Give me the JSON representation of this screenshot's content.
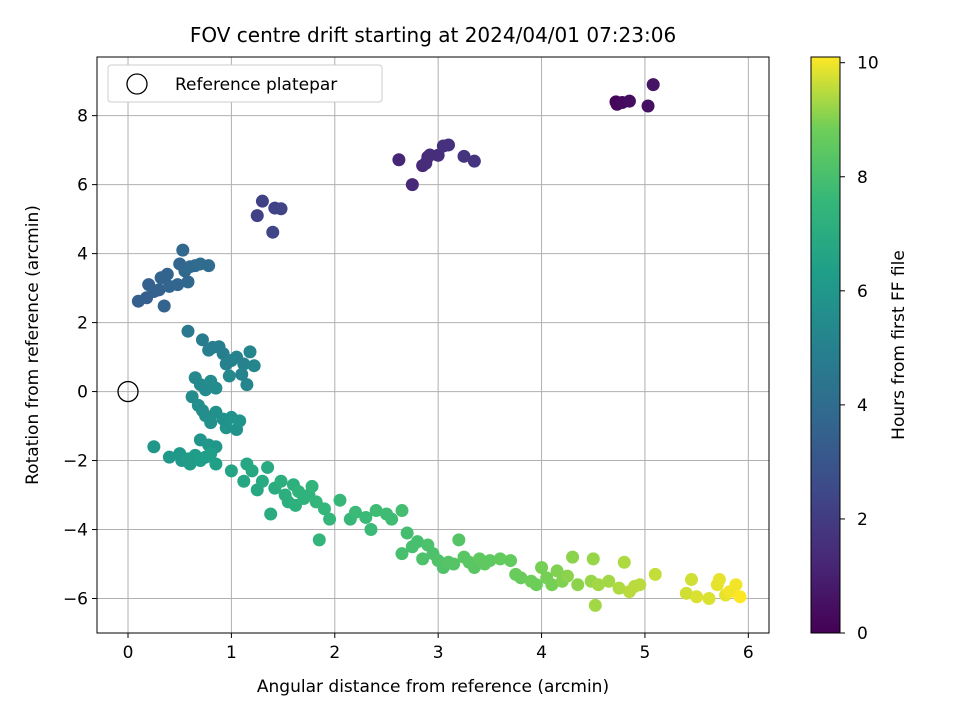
{
  "chart_data": {
    "type": "scatter",
    "title": "FOV centre drift starting at 2024/04/01 07:23:06",
    "xlabel": "Angular distance from reference (arcmin)",
    "ylabel": "Rotation from reference (arcmin)",
    "xlim": [
      -0.3,
      6.2
    ],
    "ylim": [
      -7.0,
      9.7
    ],
    "xticks": [
      0,
      1,
      2,
      3,
      4,
      5,
      6
    ],
    "yticks": [
      -6,
      -4,
      -2,
      0,
      2,
      4,
      6,
      8
    ],
    "grid": true,
    "legend": {
      "position": "top-left",
      "entries": [
        "Reference platepar"
      ]
    },
    "reference_point": {
      "x": 0,
      "y": 0
    },
    "colorbar": {
      "label": "Hours from first FF file",
      "range": [
        0,
        10.1
      ],
      "ticks": [
        0,
        2,
        4,
        6,
        8,
        10
      ],
      "colormap": "viridis"
    },
    "points": [
      {
        "x": 4.72,
        "y": 8.4,
        "c": 0.1
      },
      {
        "x": 4.73,
        "y": 8.33,
        "c": 0.2
      },
      {
        "x": 4.78,
        "y": 8.38,
        "c": 0.3
      },
      {
        "x": 4.85,
        "y": 8.42,
        "c": 0.4
      },
      {
        "x": 5.03,
        "y": 8.28,
        "c": 0.5
      },
      {
        "x": 5.08,
        "y": 8.9,
        "c": 0.6
      },
      {
        "x": 2.62,
        "y": 6.72,
        "c": 1.2
      },
      {
        "x": 2.75,
        "y": 6.0,
        "c": 1.3
      },
      {
        "x": 2.85,
        "y": 6.55,
        "c": 1.3
      },
      {
        "x": 2.88,
        "y": 6.62,
        "c": 1.4
      },
      {
        "x": 2.9,
        "y": 6.8,
        "c": 1.4
      },
      {
        "x": 2.92,
        "y": 6.86,
        "c": 1.5
      },
      {
        "x": 3.0,
        "y": 6.85,
        "c": 1.5
      },
      {
        "x": 3.05,
        "y": 7.12,
        "c": 1.6
      },
      {
        "x": 3.1,
        "y": 7.15,
        "c": 1.6
      },
      {
        "x": 3.25,
        "y": 6.82,
        "c": 1.7
      },
      {
        "x": 3.35,
        "y": 6.68,
        "c": 1.7
      },
      {
        "x": 1.25,
        "y": 5.1,
        "c": 2.2
      },
      {
        "x": 1.3,
        "y": 5.52,
        "c": 2.2
      },
      {
        "x": 1.42,
        "y": 5.32,
        "c": 2.3
      },
      {
        "x": 1.48,
        "y": 5.3,
        "c": 2.3
      },
      {
        "x": 1.4,
        "y": 4.62,
        "c": 2.4
      },
      {
        "x": 0.1,
        "y": 2.62,
        "c": 3.4
      },
      {
        "x": 0.18,
        "y": 2.72,
        "c": 3.4
      },
      {
        "x": 0.2,
        "y": 3.1,
        "c": 3.5
      },
      {
        "x": 0.25,
        "y": 2.9,
        "c": 3.5
      },
      {
        "x": 0.3,
        "y": 2.95,
        "c": 3.5
      },
      {
        "x": 0.32,
        "y": 3.3,
        "c": 3.6
      },
      {
        "x": 0.35,
        "y": 2.48,
        "c": 3.6
      },
      {
        "x": 0.38,
        "y": 3.4,
        "c": 3.6
      },
      {
        "x": 0.4,
        "y": 3.05,
        "c": 3.7
      },
      {
        "x": 0.48,
        "y": 3.1,
        "c": 3.7
      },
      {
        "x": 0.5,
        "y": 3.7,
        "c": 3.7
      },
      {
        "x": 0.53,
        "y": 4.1,
        "c": 3.8
      },
      {
        "x": 0.55,
        "y": 3.5,
        "c": 3.8
      },
      {
        "x": 0.58,
        "y": 3.18,
        "c": 3.8
      },
      {
        "x": 0.6,
        "y": 3.62,
        "c": 3.9
      },
      {
        "x": 0.65,
        "y": 3.65,
        "c": 3.9
      },
      {
        "x": 0.7,
        "y": 3.7,
        "c": 4.0
      },
      {
        "x": 0.78,
        "y": 3.65,
        "c": 4.0
      },
      {
        "x": 0.58,
        "y": 1.75,
        "c": 4.6
      },
      {
        "x": 0.72,
        "y": 1.5,
        "c": 4.7
      },
      {
        "x": 0.78,
        "y": 1.2,
        "c": 4.8
      },
      {
        "x": 0.82,
        "y": 1.28,
        "c": 4.8
      },
      {
        "x": 0.88,
        "y": 1.3,
        "c": 4.9
      },
      {
        "x": 0.92,
        "y": 1.1,
        "c": 4.9
      },
      {
        "x": 0.95,
        "y": 0.8,
        "c": 5.0
      },
      {
        "x": 1.0,
        "y": 0.9,
        "c": 5.0
      },
      {
        "x": 1.05,
        "y": 1.0,
        "c": 5.1
      },
      {
        "x": 1.1,
        "y": 0.5,
        "c": 5.1
      },
      {
        "x": 1.12,
        "y": 0.8,
        "c": 5.1
      },
      {
        "x": 1.15,
        "y": 0.2,
        "c": 5.2
      },
      {
        "x": 1.18,
        "y": 1.15,
        "c": 5.2
      },
      {
        "x": 1.22,
        "y": 0.75,
        "c": 5.2
      },
      {
        "x": 0.98,
        "y": 0.45,
        "c": 5.3
      },
      {
        "x": 0.65,
        "y": 0.4,
        "c": 5.3
      },
      {
        "x": 0.7,
        "y": 0.2,
        "c": 5.4
      },
      {
        "x": 0.75,
        "y": 0.05,
        "c": 5.4
      },
      {
        "x": 0.8,
        "y": 0.3,
        "c": 5.5
      },
      {
        "x": 0.85,
        "y": 0.1,
        "c": 5.5
      },
      {
        "x": 0.62,
        "y": -0.15,
        "c": 5.5
      },
      {
        "x": 0.68,
        "y": -0.4,
        "c": 5.6
      },
      {
        "x": 0.72,
        "y": -0.55,
        "c": 5.6
      },
      {
        "x": 0.75,
        "y": -0.7,
        "c": 5.6
      },
      {
        "x": 0.8,
        "y": -0.9,
        "c": 5.7
      },
      {
        "x": 0.85,
        "y": -0.6,
        "c": 5.7
      },
      {
        "x": 0.92,
        "y": -0.8,
        "c": 5.7
      },
      {
        "x": 0.95,
        "y": -1.05,
        "c": 5.8
      },
      {
        "x": 1.0,
        "y": -0.75,
        "c": 5.8
      },
      {
        "x": 1.05,
        "y": -1.1,
        "c": 5.8
      },
      {
        "x": 1.08,
        "y": -0.85,
        "c": 5.9
      },
      {
        "x": 0.7,
        "y": -1.4,
        "c": 5.9
      },
      {
        "x": 0.78,
        "y": -1.55,
        "c": 6.0
      },
      {
        "x": 0.85,
        "y": -1.6,
        "c": 6.0
      },
      {
        "x": 0.25,
        "y": -1.6,
        "c": 6.0
      },
      {
        "x": 0.4,
        "y": -1.9,
        "c": 6.1
      },
      {
        "x": 0.5,
        "y": -1.8,
        "c": 6.1
      },
      {
        "x": 0.52,
        "y": -2.0,
        "c": 6.1
      },
      {
        "x": 0.58,
        "y": -1.95,
        "c": 6.2
      },
      {
        "x": 0.6,
        "y": -2.1,
        "c": 6.2
      },
      {
        "x": 0.65,
        "y": -1.85,
        "c": 6.2
      },
      {
        "x": 0.7,
        "y": -2.0,
        "c": 6.3
      },
      {
        "x": 0.75,
        "y": -1.9,
        "c": 6.3
      },
      {
        "x": 0.8,
        "y": -1.8,
        "c": 6.3
      },
      {
        "x": 0.85,
        "y": -2.1,
        "c": 6.4
      },
      {
        "x": 1.0,
        "y": -2.3,
        "c": 6.6
      },
      {
        "x": 1.12,
        "y": -2.6,
        "c": 6.7
      },
      {
        "x": 1.15,
        "y": -2.1,
        "c": 6.7
      },
      {
        "x": 1.2,
        "y": -2.3,
        "c": 6.8
      },
      {
        "x": 1.25,
        "y": -2.85,
        "c": 6.8
      },
      {
        "x": 1.3,
        "y": -2.6,
        "c": 6.9
      },
      {
        "x": 1.35,
        "y": -2.2,
        "c": 6.9
      },
      {
        "x": 1.38,
        "y": -3.55,
        "c": 7.0
      },
      {
        "x": 1.42,
        "y": -2.8,
        "c": 7.0
      },
      {
        "x": 1.48,
        "y": -2.6,
        "c": 7.1
      },
      {
        "x": 1.52,
        "y": -3.0,
        "c": 7.1
      },
      {
        "x": 1.55,
        "y": -3.2,
        "c": 7.1
      },
      {
        "x": 1.6,
        "y": -2.7,
        "c": 7.2
      },
      {
        "x": 1.62,
        "y": -3.3,
        "c": 7.2
      },
      {
        "x": 1.65,
        "y": -2.9,
        "c": 7.3
      },
      {
        "x": 1.7,
        "y": -3.1,
        "c": 7.3
      },
      {
        "x": 1.75,
        "y": -3.0,
        "c": 7.3
      },
      {
        "x": 1.78,
        "y": -2.75,
        "c": 7.4
      },
      {
        "x": 1.82,
        "y": -3.2,
        "c": 7.4
      },
      {
        "x": 1.85,
        "y": -4.3,
        "c": 7.4
      },
      {
        "x": 1.9,
        "y": -3.4,
        "c": 7.5
      },
      {
        "x": 1.95,
        "y": -3.7,
        "c": 7.5
      },
      {
        "x": 2.05,
        "y": -3.15,
        "c": 7.6
      },
      {
        "x": 2.15,
        "y": -3.7,
        "c": 7.6
      },
      {
        "x": 2.2,
        "y": -3.5,
        "c": 7.7
      },
      {
        "x": 2.3,
        "y": -3.65,
        "c": 7.7
      },
      {
        "x": 2.35,
        "y": -4.0,
        "c": 7.7
      },
      {
        "x": 2.4,
        "y": -3.45,
        "c": 7.8
      },
      {
        "x": 2.5,
        "y": -3.55,
        "c": 7.8
      },
      {
        "x": 2.55,
        "y": -3.7,
        "c": 7.8
      },
      {
        "x": 2.65,
        "y": -3.45,
        "c": 7.9
      },
      {
        "x": 2.7,
        "y": -4.1,
        "c": 7.9
      },
      {
        "x": 2.75,
        "y": -4.5,
        "c": 8.0
      },
      {
        "x": 2.8,
        "y": -4.35,
        "c": 8.0
      },
      {
        "x": 2.65,
        "y": -4.7,
        "c": 8.0
      },
      {
        "x": 2.85,
        "y": -4.85,
        "c": 8.1
      },
      {
        "x": 2.9,
        "y": -4.45,
        "c": 8.1
      },
      {
        "x": 2.95,
        "y": -4.7,
        "c": 8.1
      },
      {
        "x": 3.0,
        "y": -4.9,
        "c": 8.2
      },
      {
        "x": 3.05,
        "y": -5.1,
        "c": 8.2
      },
      {
        "x": 3.1,
        "y": -4.95,
        "c": 8.3
      },
      {
        "x": 3.15,
        "y": -5.0,
        "c": 8.3
      },
      {
        "x": 3.2,
        "y": -4.3,
        "c": 8.3
      },
      {
        "x": 3.25,
        "y": -4.8,
        "c": 8.4
      },
      {
        "x": 3.3,
        "y": -4.95,
        "c": 8.4
      },
      {
        "x": 3.35,
        "y": -5.1,
        "c": 8.4
      },
      {
        "x": 3.4,
        "y": -4.85,
        "c": 8.5
      },
      {
        "x": 3.45,
        "y": -5.0,
        "c": 8.5
      },
      {
        "x": 3.5,
        "y": -4.9,
        "c": 8.5
      },
      {
        "x": 3.6,
        "y": -4.85,
        "c": 8.6
      },
      {
        "x": 3.7,
        "y": -4.9,
        "c": 8.6
      },
      {
        "x": 3.75,
        "y": -5.3,
        "c": 8.7
      },
      {
        "x": 3.8,
        "y": -5.4,
        "c": 8.7
      },
      {
        "x": 3.9,
        "y": -5.5,
        "c": 8.8
      },
      {
        "x": 3.95,
        "y": -5.6,
        "c": 8.8
      },
      {
        "x": 4.0,
        "y": -5.1,
        "c": 8.9
      },
      {
        "x": 4.05,
        "y": -5.4,
        "c": 8.9
      },
      {
        "x": 4.1,
        "y": -5.6,
        "c": 8.9
      },
      {
        "x": 4.15,
        "y": -5.2,
        "c": 9.0
      },
      {
        "x": 4.2,
        "y": -5.5,
        "c": 9.0
      },
      {
        "x": 4.25,
        "y": -5.35,
        "c": 9.1
      },
      {
        "x": 4.3,
        "y": -4.8,
        "c": 9.1
      },
      {
        "x": 4.35,
        "y": -5.6,
        "c": 9.1
      },
      {
        "x": 4.48,
        "y": -5.5,
        "c": 9.2
      },
      {
        "x": 4.5,
        "y": -4.85,
        "c": 9.2
      },
      {
        "x": 4.52,
        "y": -6.2,
        "c": 9.3
      },
      {
        "x": 4.55,
        "y": -5.6,
        "c": 9.3
      },
      {
        "x": 4.65,
        "y": -5.5,
        "c": 9.3
      },
      {
        "x": 4.75,
        "y": -5.7,
        "c": 9.4
      },
      {
        "x": 4.8,
        "y": -4.95,
        "c": 9.4
      },
      {
        "x": 4.85,
        "y": -5.8,
        "c": 9.5
      },
      {
        "x": 4.9,
        "y": -5.65,
        "c": 9.5
      },
      {
        "x": 4.95,
        "y": -5.6,
        "c": 9.5
      },
      {
        "x": 5.1,
        "y": -5.3,
        "c": 9.6
      },
      {
        "x": 5.4,
        "y": -5.85,
        "c": 9.7
      },
      {
        "x": 5.45,
        "y": -5.45,
        "c": 9.7
      },
      {
        "x": 5.5,
        "y": -5.95,
        "c": 9.8
      },
      {
        "x": 5.62,
        "y": -6.0,
        "c": 9.8
      },
      {
        "x": 5.7,
        "y": -5.6,
        "c": 9.9
      },
      {
        "x": 5.72,
        "y": -5.45,
        "c": 9.9
      },
      {
        "x": 5.78,
        "y": -5.9,
        "c": 9.9
      },
      {
        "x": 5.82,
        "y": -5.8,
        "c": 10.0
      },
      {
        "x": 5.88,
        "y": -5.6,
        "c": 10.0
      },
      {
        "x": 5.92,
        "y": -5.95,
        "c": 10.1
      }
    ]
  }
}
